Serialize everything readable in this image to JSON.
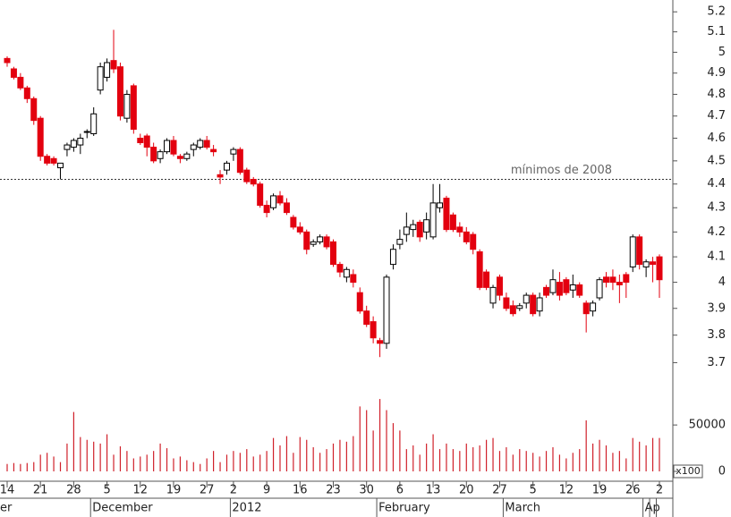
{
  "chart_data": {
    "type": "candlestick",
    "log_scale": true,
    "up_color": "#ffffff",
    "down_color": "#e3000f",
    "ylim": [
      3.6,
      5.26
    ],
    "yticks": [
      3.7,
      3.8,
      3.9,
      4.0,
      4.1,
      4.2,
      4.3,
      4.4,
      4.5,
      4.6,
      4.7,
      4.8,
      4.9,
      5.0,
      5.1,
      5.2
    ],
    "categories": [
      "14",
      null,
      null,
      null,
      null,
      "21",
      null,
      null,
      null,
      null,
      "28",
      null,
      null,
      null,
      null,
      "5",
      null,
      null,
      null,
      null,
      "12",
      null,
      null,
      null,
      null,
      "19",
      null,
      null,
      null,
      null,
      "27",
      null,
      null,
      null,
      "2",
      null,
      null,
      null,
      null,
      "9",
      null,
      null,
      null,
      null,
      "16",
      null,
      null,
      null,
      null,
      "23",
      null,
      null,
      null,
      null,
      "30",
      null,
      null,
      null,
      null,
      "6",
      null,
      null,
      null,
      null,
      "13",
      null,
      null,
      null,
      null,
      "20",
      null,
      null,
      null,
      null,
      "27",
      null,
      null,
      null,
      null,
      "5",
      null,
      null,
      null,
      null,
      "12",
      null,
      null,
      null,
      null,
      "19",
      null,
      null,
      null,
      null,
      "26",
      null,
      null,
      null,
      "2"
    ],
    "month_categories": [
      "er",
      null,
      null,
      null,
      null,
      null,
      null,
      null,
      null,
      null,
      null,
      null,
      null,
      "December",
      null,
      null,
      null,
      null,
      null,
      null,
      null,
      null,
      null,
      null,
      null,
      null,
      null,
      null,
      null,
      null,
      null,
      null,
      null,
      null,
      "2012",
      null,
      null,
      null,
      null,
      null,
      null,
      null,
      null,
      null,
      null,
      null,
      null,
      null,
      null,
      null,
      null,
      null,
      null,
      null,
      null,
      null,
      "February",
      null,
      null,
      null,
      null,
      null,
      null,
      null,
      null,
      null,
      null,
      null,
      null,
      null,
      null,
      null,
      null,
      null,
      null,
      "March",
      null,
      null,
      null,
      null,
      null,
      null,
      null,
      null,
      null,
      null,
      null,
      null,
      null,
      null,
      null,
      null,
      null,
      null,
      null,
      null,
      "Ap"
    ],
    "open": [
      4.97,
      4.92,
      4.88,
      4.83,
      4.78,
      4.69,
      4.52,
      4.51,
      4.47,
      4.55,
      4.56,
      4.57,
      4.63,
      4.62,
      4.82,
      4.88,
      4.96,
      4.93,
      4.69,
      4.84,
      4.6,
      4.61,
      4.56,
      4.51,
      4.54,
      4.59,
      4.52,
      4.51,
      4.55,
      4.56,
      4.59,
      4.55,
      4.44,
      4.46,
      4.53,
      4.55,
      4.46,
      4.42,
      4.4,
      4.31,
      4.3,
      4.35,
      4.32,
      4.26,
      4.22,
      4.2,
      4.15,
      4.16,
      4.18,
      4.16,
      4.07,
      4.02,
      4.03,
      3.96,
      3.89,
      3.85,
      3.78,
      3.77,
      4.07,
      4.15,
      4.19,
      4.21,
      4.24,
      4.2,
      4.18,
      4.3,
      4.34,
      4.27,
      4.22,
      4.2,
      4.19,
      4.12,
      4.04,
      3.92,
      4.02,
      3.94,
      3.91,
      3.9,
      3.92,
      3.95,
      3.89,
      3.98,
      3.96,
      4.0,
      4.01,
      3.97,
      3.99,
      3.92,
      3.89,
      3.94,
      4.02,
      4.02,
      4.0,
      4.03,
      4.06,
      4.18,
      4.06,
      4.08,
      4.1
    ],
    "high": [
      4.98,
      4.93,
      4.9,
      4.84,
      4.79,
      4.7,
      4.53,
      4.52,
      4.49,
      4.58,
      4.6,
      4.62,
      4.64,
      4.74,
      4.95,
      4.97,
      5.11,
      4.95,
      4.82,
      4.85,
      4.62,
      4.62,
      4.58,
      4.55,
      4.6,
      4.61,
      4.53,
      4.54,
      4.58,
      4.6,
      4.61,
      4.57,
      4.46,
      4.5,
      4.56,
      4.56,
      4.47,
      4.43,
      4.41,
      4.33,
      4.36,
      4.37,
      4.34,
      4.27,
      4.24,
      4.21,
      4.17,
      4.19,
      4.19,
      4.17,
      4.08,
      4.06,
      4.05,
      3.98,
      3.91,
      3.87,
      3.79,
      4.03,
      4.15,
      4.21,
      4.28,
      4.25,
      4.25,
      4.28,
      4.4,
      4.4,
      4.35,
      4.28,
      4.24,
      4.22,
      4.2,
      4.13,
      4.05,
      3.99,
      4.03,
      3.96,
      3.93,
      3.92,
      3.96,
      3.96,
      3.96,
      3.99,
      4.05,
      4.04,
      4.02,
      4.03,
      4.0,
      3.93,
      3.93,
      4.02,
      4.04,
      4.05,
      4.03,
      4.04,
      4.19,
      4.19,
      4.09,
      4.1,
      4.11
    ],
    "low": [
      4.93,
      4.87,
      4.82,
      4.76,
      4.66,
      4.5,
      4.48,
      4.48,
      4.42,
      4.52,
      4.54,
      4.53,
      4.6,
      4.61,
      4.8,
      4.86,
      4.9,
      4.68,
      4.67,
      4.62,
      4.57,
      4.52,
      4.49,
      4.49,
      4.53,
      4.52,
      4.49,
      4.5,
      4.52,
      4.55,
      4.55,
      4.52,
      4.4,
      4.44,
      4.5,
      4.44,
      4.4,
      4.39,
      4.3,
      4.26,
      4.29,
      4.31,
      4.27,
      4.21,
      4.19,
      4.11,
      4.14,
      4.15,
      4.13,
      4.06,
      4.02,
      4.0,
      3.98,
      3.88,
      3.83,
      3.77,
      3.72,
      3.75,
      4.05,
      4.13,
      4.16,
      4.18,
      4.16,
      4.17,
      4.17,
      4.28,
      4.2,
      4.2,
      4.18,
      4.15,
      4.11,
      3.97,
      3.97,
      3.9,
      3.93,
      3.89,
      3.87,
      3.89,
      3.9,
      3.87,
      3.87,
      3.94,
      3.95,
      3.93,
      3.95,
      3.94,
      3.94,
      3.81,
      3.87,
      3.93,
      3.98,
      3.97,
      3.92,
      3.94,
      4.04,
      4.05,
      4.02,
      4.0,
      3.94
    ],
    "close": [
      4.95,
      4.88,
      4.83,
      4.78,
      4.68,
      4.52,
      4.49,
      4.49,
      4.49,
      4.57,
      4.59,
      4.6,
      4.63,
      4.71,
      4.93,
      4.95,
      4.92,
      4.7,
      4.8,
      4.64,
      4.58,
      4.56,
      4.5,
      4.54,
      4.59,
      4.53,
      4.51,
      4.53,
      4.57,
      4.59,
      4.56,
      4.54,
      4.43,
      4.49,
      4.55,
      4.45,
      4.41,
      4.4,
      4.31,
      4.28,
      4.35,
      4.32,
      4.28,
      4.22,
      4.2,
      4.13,
      4.16,
      4.18,
      4.14,
      4.07,
      4.04,
      4.05,
      4.0,
      3.89,
      3.84,
      3.79,
      3.77,
      4.02,
      4.13,
      4.17,
      4.22,
      4.23,
      4.18,
      4.25,
      4.32,
      4.32,
      4.21,
      4.21,
      4.2,
      4.16,
      4.13,
      3.98,
      3.98,
      3.98,
      3.95,
      3.9,
      3.88,
      3.91,
      3.95,
      3.88,
      3.94,
      3.95,
      4.01,
      3.95,
      3.96,
      3.99,
      3.95,
      3.88,
      3.92,
      4.01,
      4.0,
      4.0,
      3.99,
      4.0,
      4.18,
      4.07,
      4.08,
      4.07,
      4.01
    ],
    "reference_line": {
      "value": 4.42,
      "label": "mínimos de 2008",
      "color": "#333333"
    },
    "volume": {
      "color": "#d0202a",
      "unit_label": "x100",
      "ylim": [
        0,
        80000
      ],
      "yticks": [
        0,
        50000
      ],
      "values": [
        8000,
        9000,
        8000,
        9000,
        10000,
        18000,
        20000,
        16000,
        10000,
        30000,
        64000,
        37000,
        34000,
        32000,
        30000,
        40000,
        18000,
        27000,
        22000,
        14000,
        16000,
        18000,
        22000,
        30000,
        25000,
        14000,
        16000,
        12000,
        10000,
        8000,
        14000,
        22000,
        10000,
        18000,
        22000,
        20000,
        24000,
        16000,
        18000,
        22000,
        36000,
        28000,
        38000,
        20000,
        37000,
        34000,
        26000,
        20000,
        24000,
        30000,
        34000,
        32000,
        38000,
        70000,
        66000,
        44000,
        78000,
        66000,
        52000,
        44000,
        24000,
        28000,
        18000,
        30000,
        40000,
        24000,
        30000,
        24000,
        22000,
        30000,
        26000,
        28000,
        34000,
        36000,
        22000,
        26000,
        18000,
        24000,
        22000,
        20000,
        16000,
        22000,
        26000,
        18000,
        14000,
        20000,
        24000,
        55000,
        30000,
        34000,
        28000,
        20000,
        22000,
        14000,
        36000,
        32000,
        28000,
        36000,
        36000
      ]
    }
  }
}
